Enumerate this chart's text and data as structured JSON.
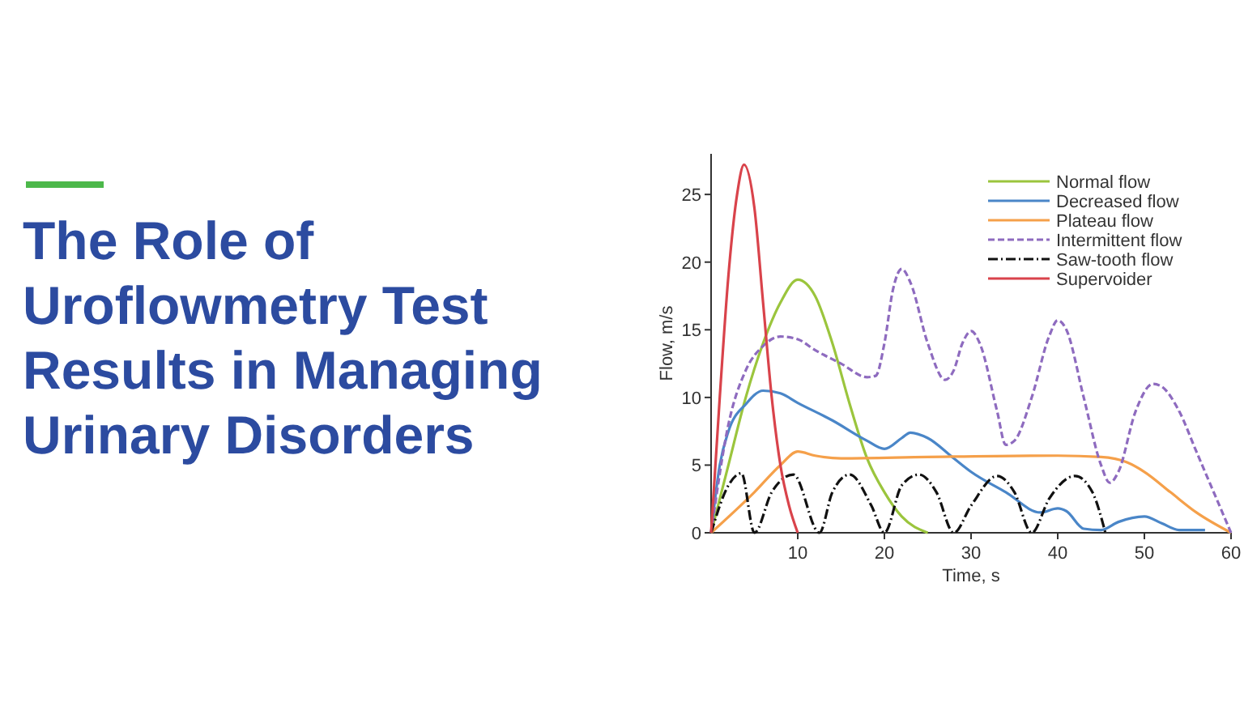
{
  "chart_data": {
    "type": "line",
    "title": "The Role of Uroflowmetry Test Results in Managing Urinary Disorders",
    "xlabel": "Time, s",
    "ylabel": "Flow, m/s",
    "xlim": [
      0,
      60
    ],
    "xticks": [
      10,
      20,
      30,
      40,
      50,
      60
    ],
    "ylim": [
      0,
      28
    ],
    "yticks": [
      0,
      5,
      10,
      15,
      20,
      25
    ],
    "legend": "top right",
    "series": [
      {
        "name": "Normal flow",
        "color": "#9bc53d",
        "line_style": "solid",
        "x": [
          0,
          2,
          4,
          6,
          8,
          10,
          12,
          14,
          16,
          18,
          20,
          22,
          25
        ],
        "values": [
          0,
          5,
          10,
          14,
          17,
          18.7,
          17.5,
          14,
          9.5,
          5.5,
          3,
          1.2,
          0
        ]
      },
      {
        "name": "Decreased flow",
        "color": "#4a86c8",
        "line_style": "solid",
        "x": [
          0,
          1,
          2,
          4,
          6,
          8,
          10,
          14,
          18,
          20,
          22,
          23,
          25,
          28,
          30,
          34,
          38,
          40,
          41,
          43,
          45,
          47,
          50,
          52,
          54,
          57
        ],
        "values": [
          0,
          5,
          7.5,
          9.5,
          10.5,
          10.3,
          9.6,
          8.3,
          6.8,
          6.2,
          7,
          7.4,
          7,
          5.5,
          4.5,
          3,
          1.5,
          1.8,
          1.6,
          0.3,
          0.2,
          0.8,
          1.2,
          0.7,
          0.2,
          0.2
        ]
      },
      {
        "name": "Plateau flow",
        "color": "#f5a04a",
        "line_style": "solid",
        "x": [
          0,
          5,
          8,
          10,
          12,
          15,
          25,
          40,
          45,
          48,
          50,
          53,
          56,
          60
        ],
        "values": [
          0,
          3,
          5,
          6,
          5.7,
          5.5,
          5.6,
          5.7,
          5.6,
          5.2,
          4.5,
          3,
          1.5,
          0
        ]
      },
      {
        "name": "Intermittent flow",
        "color": "#8e6bbf",
        "line_style": "dashed",
        "x": [
          0,
          2,
          4,
          6,
          8,
          10,
          12,
          15,
          18,
          19,
          20,
          21,
          22,
          23,
          25,
          27,
          28,
          29,
          30,
          31,
          33,
          34,
          35,
          37,
          39,
          40,
          41,
          43,
          45,
          46,
          47,
          49,
          51,
          52,
          54,
          56,
          58,
          60
        ],
        "values": [
          0,
          8,
          12,
          13.8,
          14.5,
          14.3,
          13.5,
          12.5,
          11.5,
          11.6,
          14,
          18,
          19.5,
          18.5,
          14,
          11.3,
          12,
          14,
          14.9,
          14,
          9,
          6.5,
          6.8,
          10,
          14.5,
          15.7,
          15,
          10,
          5,
          3.7,
          4.5,
          9,
          11,
          10.8,
          9,
          6,
          3,
          0
        ]
      },
      {
        "name": "Saw-tooth flow",
        "color": "#111111",
        "line_style": "dashdot",
        "x": [
          0,
          2,
          3.5,
          5,
          7,
          9.5,
          12.5,
          14,
          16,
          18.5,
          20,
          22,
          24,
          26,
          28,
          30,
          33,
          35,
          37,
          39,
          42,
          44,
          45.5
        ],
        "values": [
          0,
          3.5,
          4.4,
          0,
          3,
          4.3,
          0,
          3,
          4.3,
          2,
          0,
          3.5,
          4.3,
          3,
          0,
          2,
          4.2,
          3,
          0,
          2.5,
          4.2,
          3,
          0
        ]
      },
      {
        "name": "Supervoider",
        "color": "#d9434b",
        "line_style": "solid",
        "x": [
          0,
          1,
          2,
          3,
          3.8,
          5,
          6,
          7,
          8,
          9,
          10
        ],
        "values": [
          0,
          10,
          19,
          25,
          27.2,
          24,
          17,
          10,
          5,
          2,
          0
        ]
      }
    ]
  }
}
